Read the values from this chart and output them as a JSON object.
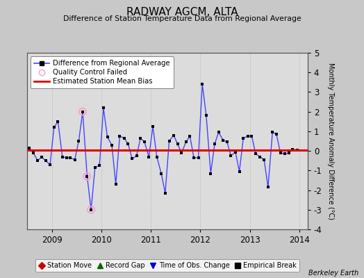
{
  "title": "RADWAY AGCM, ALTA",
  "subtitle": "Difference of Station Temperature Data from Regional Average",
  "ylabel_right": "Monthly Temperature Anomaly Difference (°C)",
  "credit": "Berkeley Earth",
  "xlim": [
    2008.5,
    2014.17
  ],
  "ylim": [
    -4,
    5
  ],
  "yticks": [
    -4,
    -3,
    -2,
    -1,
    0,
    1,
    2,
    3,
    4,
    5
  ],
  "xticks": [
    2009,
    2010,
    2011,
    2012,
    2013,
    2014
  ],
  "bias_value": 0.05,
  "bg_color": "#c8c8c8",
  "plot_bg_color": "#dcdcdc",
  "line_color": "#4444ff",
  "bias_color": "#dd0000",
  "marker_color": "#000000",
  "qc_color": "#ff99cc",
  "times": [
    2008.54,
    2008.62,
    2008.71,
    2008.79,
    2008.87,
    2008.96,
    2009.04,
    2009.12,
    2009.21,
    2009.29,
    2009.37,
    2009.46,
    2009.54,
    2009.62,
    2009.71,
    2009.79,
    2009.87,
    2009.96,
    2010.04,
    2010.12,
    2010.21,
    2010.29,
    2010.37,
    2010.46,
    2010.54,
    2010.62,
    2010.71,
    2010.79,
    2010.87,
    2010.96,
    2011.04,
    2011.12,
    2011.21,
    2011.29,
    2011.37,
    2011.46,
    2011.54,
    2011.62,
    2011.71,
    2011.79,
    2011.87,
    2011.96,
    2012.04,
    2012.12,
    2012.21,
    2012.29,
    2012.37,
    2012.46,
    2012.54,
    2012.62,
    2012.71,
    2012.79,
    2012.87,
    2012.96,
    2013.04,
    2013.12,
    2013.21,
    2013.29,
    2013.37,
    2013.46,
    2013.54,
    2013.62,
    2013.71,
    2013.79,
    2013.87,
    2013.96
  ],
  "values": [
    0.15,
    -0.1,
    -0.5,
    -0.3,
    -0.5,
    -0.7,
    1.2,
    1.5,
    -0.3,
    -0.35,
    -0.35,
    -0.45,
    0.5,
    2.0,
    -1.3,
    -3.0,
    -0.85,
    -0.75,
    2.2,
    0.7,
    0.3,
    -1.7,
    0.75,
    0.65,
    0.35,
    -0.4,
    -0.25,
    0.65,
    0.45,
    -0.3,
    1.25,
    -0.3,
    -1.15,
    -2.15,
    0.5,
    0.8,
    0.35,
    -0.1,
    0.45,
    0.75,
    -0.35,
    -0.35,
    3.4,
    1.8,
    -1.15,
    0.35,
    0.95,
    0.55,
    0.45,
    -0.25,
    -0.05,
    -1.05,
    0.65,
    0.75,
    0.75,
    -0.15,
    -0.3,
    -0.45,
    -1.85,
    0.95,
    0.85,
    -0.1,
    -0.15,
    -0.1,
    0.08,
    0.05
  ],
  "qc_failed_indices": [
    13,
    14,
    15
  ],
  "legend_main_labels": [
    "Difference from Regional Average",
    "Quality Control Failed",
    "Estimated Station Mean Bias"
  ],
  "legend_bottom": [
    {
      "label": "Station Move",
      "marker": "D",
      "color": "#cc0000"
    },
    {
      "label": "Record Gap",
      "marker": "^",
      "color": "#006600"
    },
    {
      "label": "Time of Obs. Change",
      "marker": "v",
      "color": "#0000cc"
    },
    {
      "label": "Empirical Break",
      "marker": "s",
      "color": "#000000"
    }
  ]
}
